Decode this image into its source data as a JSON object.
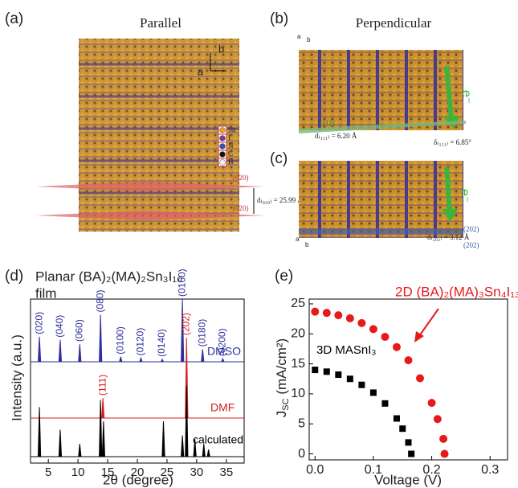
{
  "panels": {
    "a": {
      "label": "(a)",
      "title": "Parallel",
      "axes": [
        "b",
        "a"
      ],
      "legend": [
        "Sn",
        "I",
        "N",
        "C",
        "H"
      ],
      "planes": [
        "(020)",
        "(020)"
      ],
      "spacing": "d₍₀₂₀₎ = 25.99 Å"
    },
    "b": {
      "label": "(b)",
      "title": "Perpendicular",
      "axes": [
        "a",
        "b"
      ],
      "arrow": "e⁻",
      "plane": "(111)",
      "spacing": "d₍₁₁₁₎ = 6.20 Å",
      "angle": "δ₍₁₁₁₎ = 6.85°"
    },
    "c": {
      "label": "(c)",
      "axes": [
        "a",
        "b"
      ],
      "arrow": "e⁻",
      "planes": [
        "(202)",
        "(202)"
      ],
      "spacing": "d₍₂₀₂₎ = 3.12 Å"
    }
  },
  "chart_data": [
    {
      "type": "spectrum",
      "label": "(d)",
      "title": "Planar (BA)₂(MA)₂Sn₃I₁₀",
      "subtitle": "film",
      "x_label": "2θ (degree)",
      "y_label": "Intensity (a.u.)",
      "xlim": [
        2,
        38
      ],
      "xticks": [
        5,
        10,
        15,
        20,
        25,
        30,
        35
      ],
      "series": [
        {
          "name": "DMSO",
          "color": "#2e2e9c",
          "x": [
            3.5,
            7,
            10.3,
            13.8,
            17.2,
            20.6,
            24.2,
            27.6,
            31,
            34.4
          ],
          "values": [
            40,
            35,
            28,
            75,
            8,
            6,
            4,
            100,
            20,
            5
          ],
          "labels": [
            "(020)",
            "(040)",
            "(060)",
            "(080)",
            "(0100)",
            "(0120)",
            "(0140)",
            "(0160)",
            "(0180)",
            "(0200)"
          ]
        },
        {
          "name": "DMF",
          "color": "#d42020",
          "x": [
            14.2,
            28.3
          ],
          "values": [
            25,
            100
          ],
          "labels": [
            "(111)",
            "(202)"
          ]
        },
        {
          "name": "calculated",
          "color": "#000000",
          "x": [
            3.5,
            7,
            10.3,
            13.8,
            14.3,
            24.4,
            27.6,
            28.3,
            29.7,
            31.2,
            32
          ],
          "values": [
            70,
            38,
            18,
            80,
            50,
            50,
            30,
            100,
            25,
            18,
            10
          ]
        }
      ]
    },
    {
      "type": "scatter",
      "label": "(e)",
      "x_label": "Voltage (V)",
      "y_label": {
        "symbol": "J",
        "subscript": "SC",
        "unit": " (mA/cm²)"
      },
      "xlim": [
        -0.01,
        0.33
      ],
      "ylim": [
        -1,
        25.8
      ],
      "xticks": [
        {
          "value": 0,
          "label": "0.0"
        },
        0.1,
        0.2,
        0.3
      ],
      "yticks": [
        0,
        5,
        10,
        15,
        20,
        25
      ],
      "series": [
        {
          "name": "2D (BA)₂(MA)₃Sn₄I₁₃",
          "color": "#e8191c",
          "marker": "circle",
          "x": [
            0,
            0.02,
            0.04,
            0.06,
            0.08,
            0.1,
            0.12,
            0.14,
            0.16,
            0.18,
            0.2,
            0.21,
            0.22,
            0.222
          ],
          "values": [
            23.7,
            23.5,
            23.1,
            22.6,
            21.8,
            20.8,
            19.5,
            17.8,
            15.6,
            12.6,
            8.5,
            5.8,
            2.5,
            0
          ]
        },
        {
          "name": "3D MASnI₃",
          "color": "#000000",
          "marker": "square",
          "x": [
            0,
            0.02,
            0.04,
            0.06,
            0.08,
            0.1,
            0.12,
            0.14,
            0.15,
            0.16,
            0.165
          ],
          "values": [
            14,
            13.7,
            13.2,
            12.5,
            11.5,
            10.2,
            8.4,
            5.9,
            4.2,
            1.9,
            0
          ]
        }
      ]
    }
  ]
}
